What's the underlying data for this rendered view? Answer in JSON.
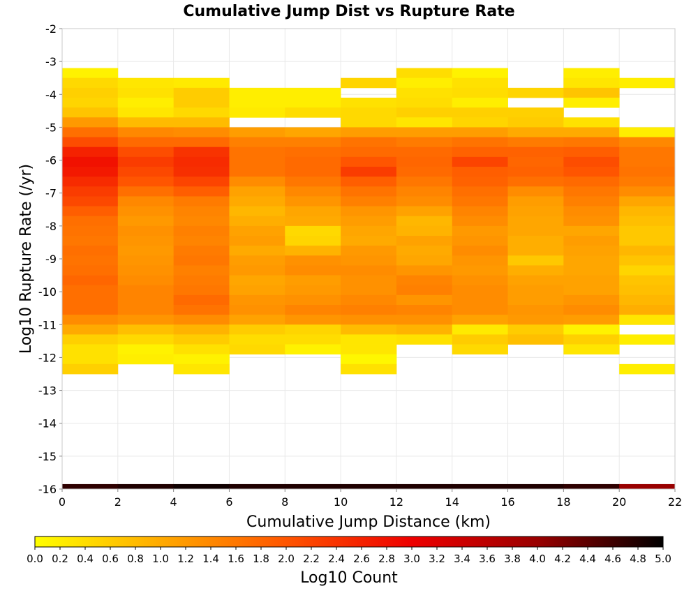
{
  "chart_data": {
    "type": "heatmap",
    "title": "Cumulative Jump Dist vs Rupture Rate",
    "xlabel": "Cumulative Jump Distance (km)",
    "ylabel": "Log10 Rupture Rate (/yr)",
    "xlim": [
      0,
      22
    ],
    "ylim": [
      -16,
      -2
    ],
    "x_ticks": [
      0,
      2,
      4,
      6,
      8,
      10,
      12,
      14,
      16,
      18,
      20,
      22
    ],
    "y_ticks": [
      -2,
      -3,
      -4,
      -5,
      -6,
      -7,
      -8,
      -9,
      -10,
      -11,
      -12,
      -13,
      -14,
      -15,
      -16
    ],
    "grid": true,
    "x_bin_width": 2,
    "y_bin_height": 0.3,
    "x_bin_starts": [
      0,
      2,
      4,
      6,
      8,
      10,
      12,
      14,
      16,
      18,
      20
    ],
    "y_bin_starts": [
      -3.5,
      -3.8,
      -4.1,
      -4.4,
      -4.7,
      -5.0,
      -5.3,
      -5.6,
      -5.9,
      -6.2,
      -6.5,
      -6.8,
      -7.1,
      -7.4,
      -7.7,
      -8.0,
      -8.3,
      -8.6,
      -8.9,
      -9.2,
      -9.5,
      -9.8,
      -10.1,
      -10.4,
      -10.7,
      -11.0,
      -11.3,
      -11.6,
      -11.9,
      -12.2,
      -12.5
    ],
    "values_log10_count": [
      [
        0.15,
        null,
        null,
        null,
        null,
        null,
        0.4,
        0.15,
        null,
        0.2,
        null
      ],
      [
        0.45,
        0.3,
        0.25,
        null,
        null,
        0.5,
        0.2,
        0.35,
        null,
        0.3,
        0.2
      ],
      [
        0.55,
        0.35,
        0.6,
        0.2,
        0.2,
        null,
        0.35,
        0.4,
        0.5,
        0.7,
        null
      ],
      [
        0.5,
        0.2,
        0.6,
        0.2,
        0.2,
        0.35,
        0.4,
        0.2,
        null,
        0.2,
        null
      ],
      [
        0.7,
        0.3,
        0.45,
        0.25,
        0.4,
        0.45,
        0.55,
        0.55,
        0.55,
        null,
        null
      ],
      [
        1.2,
        0.8,
        0.8,
        null,
        null,
        0.45,
        0.3,
        0.5,
        0.6,
        0.35,
        null
      ],
      [
        1.7,
        1.4,
        1.35,
        1.15,
        1.05,
        1.15,
        1.15,
        1.15,
        1.0,
        1.0,
        0.2
      ],
      [
        2.1,
        1.75,
        1.75,
        1.5,
        1.5,
        1.65,
        1.55,
        1.65,
        1.55,
        1.6,
        1.4
      ],
      [
        2.6,
        2.1,
        2.4,
        1.65,
        1.7,
        1.75,
        1.75,
        1.85,
        1.85,
        1.9,
        1.6
      ],
      [
        2.8,
        2.3,
        2.5,
        1.65,
        1.75,
        2.0,
        1.8,
        2.2,
        1.8,
        2.1,
        1.6
      ],
      [
        2.7,
        2.15,
        2.45,
        1.65,
        1.75,
        2.3,
        1.75,
        1.9,
        1.85,
        2.0,
        1.65
      ],
      [
        2.5,
        2.0,
        2.2,
        1.35,
        1.6,
        1.9,
        1.6,
        1.85,
        1.7,
        1.75,
        1.55
      ],
      [
        2.3,
        1.7,
        1.9,
        1.1,
        1.4,
        1.65,
        1.45,
        1.7,
        1.35,
        1.6,
        1.35
      ],
      [
        2.15,
        1.4,
        1.55,
        1.0,
        1.25,
        1.5,
        1.35,
        1.6,
        1.15,
        1.5,
        1.05
      ],
      [
        1.9,
        1.3,
        1.45,
        0.85,
        1.05,
        1.25,
        1.1,
        1.45,
        1.1,
        1.35,
        0.85
      ],
      [
        1.7,
        1.2,
        1.4,
        0.95,
        1.0,
        1.15,
        0.85,
        1.35,
        1.05,
        1.3,
        0.75
      ],
      [
        1.65,
        1.3,
        1.5,
        1.1,
        0.45,
        1.05,
        0.9,
        1.2,
        1.05,
        1.05,
        0.65
      ],
      [
        1.6,
        1.25,
        1.45,
        1.15,
        0.5,
        1.0,
        1.1,
        1.25,
        0.95,
        1.15,
        0.65
      ],
      [
        1.7,
        1.2,
        1.55,
        1.0,
        0.9,
        1.2,
        1.0,
        1.35,
        0.95,
        1.1,
        0.85
      ],
      [
        1.65,
        1.25,
        1.6,
        1.15,
        1.3,
        1.25,
        1.05,
        1.25,
        0.65,
        1.05,
        0.7
      ],
      [
        1.7,
        1.3,
        1.5,
        1.2,
        1.35,
        1.35,
        1.25,
        1.2,
        0.95,
        1.05,
        0.5
      ],
      [
        1.8,
        1.35,
        1.55,
        1.05,
        1.15,
        1.3,
        1.45,
        1.3,
        1.1,
        1.1,
        0.7
      ],
      [
        1.7,
        1.45,
        1.6,
        1.1,
        1.2,
        1.3,
        1.5,
        1.35,
        1.15,
        1.1,
        0.75
      ],
      [
        1.7,
        1.45,
        1.75,
        1.25,
        1.3,
        1.4,
        1.25,
        1.35,
        1.15,
        1.25,
        0.85
      ],
      [
        1.7,
        1.45,
        1.65,
        1.3,
        1.45,
        1.5,
        1.45,
        1.35,
        1.25,
        1.35,
        0.95
      ],
      [
        1.35,
        1.25,
        1.35,
        1.1,
        1.25,
        1.3,
        1.3,
        1.1,
        1.2,
        1.15,
        0.3
      ],
      [
        1.0,
        0.75,
        0.9,
        0.6,
        0.5,
        0.8,
        0.9,
        0.25,
        0.6,
        0.15,
        null
      ],
      [
        0.55,
        0.45,
        0.6,
        0.4,
        0.4,
        0.3,
        0.35,
        0.6,
        0.75,
        0.55,
        0.2
      ],
      [
        0.35,
        0.15,
        0.35,
        0.45,
        0.15,
        0.3,
        null,
        0.45,
        null,
        0.3,
        null
      ],
      [
        0.35,
        0.2,
        0.15,
        null,
        null,
        0.1,
        null,
        null,
        null,
        null,
        null
      ],
      [
        0.55,
        null,
        0.3,
        null,
        null,
        0.35,
        null,
        null,
        null,
        null,
        0.2
      ]
    ],
    "bottom_band": {
      "y_range": [
        -16,
        -15.85
      ],
      "values_log10_count": [
        4.7,
        4.8,
        4.9,
        4.8,
        4.8,
        4.8,
        4.8,
        4.8,
        4.8,
        4.7,
        4.0
      ]
    },
    "colorbar": {
      "label": "Log10 Count",
      "range": [
        0.0,
        5.0
      ],
      "ticks": [
        "0.0",
        "0.2",
        "0.4",
        "0.6",
        "0.8",
        "1.0",
        "1.2",
        "1.4",
        "1.6",
        "1.8",
        "2.0",
        "2.2",
        "2.4",
        "2.6",
        "2.8",
        "3.0",
        "3.2",
        "3.4",
        "3.6",
        "3.8",
        "4.0",
        "4.2",
        "4.4",
        "4.6",
        "4.8",
        "5.0"
      ],
      "colors": [
        "#ffff00",
        "#ffaa00",
        "#ff5500",
        "#ee0000",
        "#990000",
        "#000000"
      ]
    }
  }
}
